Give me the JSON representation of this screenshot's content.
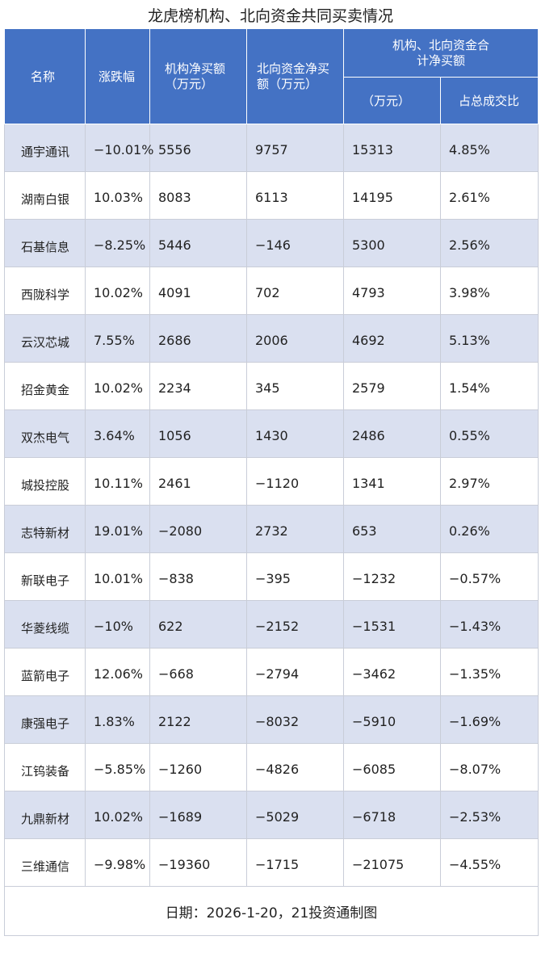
{
  "title": "龙虎榜机构、北向资金共同买卖情况",
  "headers": {
    "name": "名称",
    "change": "涨跌幅",
    "inst": "机构净买额（万元）",
    "north": "北向资金净买额（万元）",
    "combined_group": "机构、北向资金合计净买额",
    "combined_amount": "（万元）",
    "combined_ratio": "占总成交比"
  },
  "rows": [
    {
      "name": "通宇通讯",
      "change": "−10.01%",
      "inst": "5556",
      "north": "9757",
      "total": "15313",
      "ratio": "4.85%"
    },
    {
      "name": "湖南白银",
      "change": "10.03%",
      "inst": "8083",
      "north": "6113",
      "total": "14195",
      "ratio": "2.61%"
    },
    {
      "name": "石基信息",
      "change": "−8.25%",
      "inst": "5446",
      "north": "−146",
      "total": "5300",
      "ratio": "2.56%"
    },
    {
      "name": "西陇科学",
      "change": "10.02%",
      "inst": "4091",
      "north": "702",
      "total": "4793",
      "ratio": "3.98%"
    },
    {
      "name": "云汉芯城",
      "change": "7.55%",
      "inst": "2686",
      "north": "2006",
      "total": "4692",
      "ratio": "5.13%"
    },
    {
      "name": "招金黄金",
      "change": "10.02%",
      "inst": "2234",
      "north": "345",
      "total": "2579",
      "ratio": "1.54%"
    },
    {
      "name": "双杰电气",
      "change": "3.64%",
      "inst": "1056",
      "north": "1430",
      "total": "2486",
      "ratio": "0.55%"
    },
    {
      "name": "城投控股",
      "change": "10.11%",
      "inst": "2461",
      "north": "−1120",
      "total": "1341",
      "ratio": "2.97%"
    },
    {
      "name": "志特新材",
      "change": "19.01%",
      "inst": "−2080",
      "north": "2732",
      "total": "653",
      "ratio": "0.26%"
    },
    {
      "name": "新联电子",
      "change": "10.01%",
      "inst": "−838",
      "north": "−395",
      "total": "−1232",
      "ratio": "−0.57%"
    },
    {
      "name": "华菱线缆",
      "change": "−10%",
      "inst": "622",
      "north": "−2152",
      "total": "−1531",
      "ratio": "−1.43%"
    },
    {
      "name": "蓝箭电子",
      "change": "12.06%",
      "inst": "−668",
      "north": "−2794",
      "total": "−3462",
      "ratio": "−1.35%"
    },
    {
      "name": "康强电子",
      "change": "1.83%",
      "inst": "2122",
      "north": "−8032",
      "total": "−5910",
      "ratio": "−1.69%"
    },
    {
      "name": "江钨装备",
      "change": "−5.85%",
      "inst": "−1260",
      "north": "−4826",
      "total": "−6085",
      "ratio": "−8.07%"
    },
    {
      "name": "九鼎新材",
      "change": "10.02%",
      "inst": "−1689",
      "north": "−5029",
      "total": "−6718",
      "ratio": "−2.53%"
    },
    {
      "name": "三维通信",
      "change": "−9.98%",
      "inst": "−19360",
      "north": "−1715",
      "total": "−21075",
      "ratio": "−4.55%"
    }
  ],
  "footer": "日期：2026-1-20，21投资通制图"
}
